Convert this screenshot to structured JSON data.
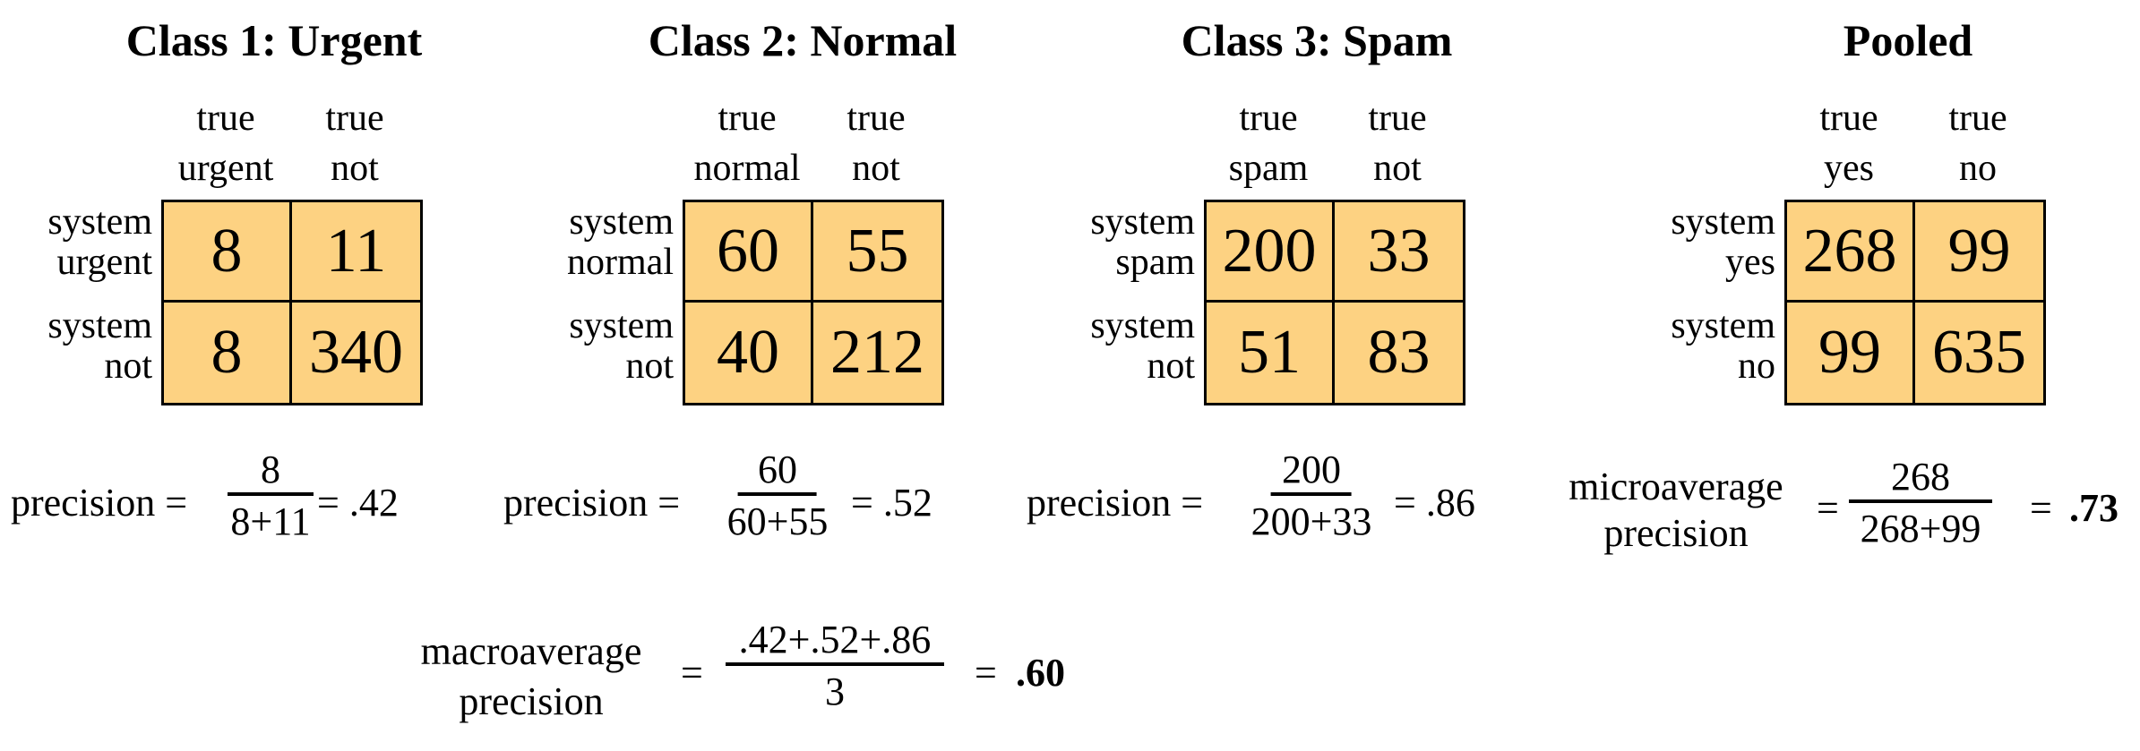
{
  "panels": [
    {
      "title": "Class 1: Urgent",
      "col_headers": [
        "true\nurgent",
        "true\nnot"
      ],
      "row_headers": [
        "system\nurgent",
        "system\nnot"
      ],
      "cells": [
        "8",
        "11",
        "8",
        "340"
      ],
      "metric_label": "precision =",
      "numerator": "8",
      "denominator": "8+11",
      "result": "= .42"
    },
    {
      "title": "Class 2: Normal",
      "col_headers": [
        "true\nnormal",
        "true\nnot"
      ],
      "row_headers": [
        "system\nnormal",
        "system\nnot"
      ],
      "cells": [
        "60",
        "55",
        "40",
        "212"
      ],
      "metric_label": "precision =",
      "numerator": "60",
      "denominator": "60+55",
      "result": "= .52"
    },
    {
      "title": "Class 3: Spam",
      "col_headers": [
        "true\nspam",
        "true\nnot"
      ],
      "row_headers": [
        "system\nspam",
        "system\nnot"
      ],
      "cells": [
        "200",
        "33",
        "51",
        "83"
      ],
      "metric_label": "precision =",
      "numerator": "200",
      "denominator": "200+33",
      "result": "= .86"
    },
    {
      "title": "Pooled",
      "col_headers": [
        "true\nyes",
        "true\nno"
      ],
      "row_headers": [
        "system\nyes",
        "system\nno"
      ],
      "cells": [
        "268",
        "99",
        "99",
        "635"
      ],
      "metric_label": "microaverage\nprecision",
      "equals": "=",
      "numerator": "268",
      "denominator": "268+99",
      "result_eq": "=",
      "result": ".73"
    }
  ],
  "macro": {
    "label": "macroaverage\nprecision",
    "equals": "=",
    "numerator": ".42+.52+.86",
    "denominator": "3",
    "result_eq": "=",
    "result": ".60"
  }
}
